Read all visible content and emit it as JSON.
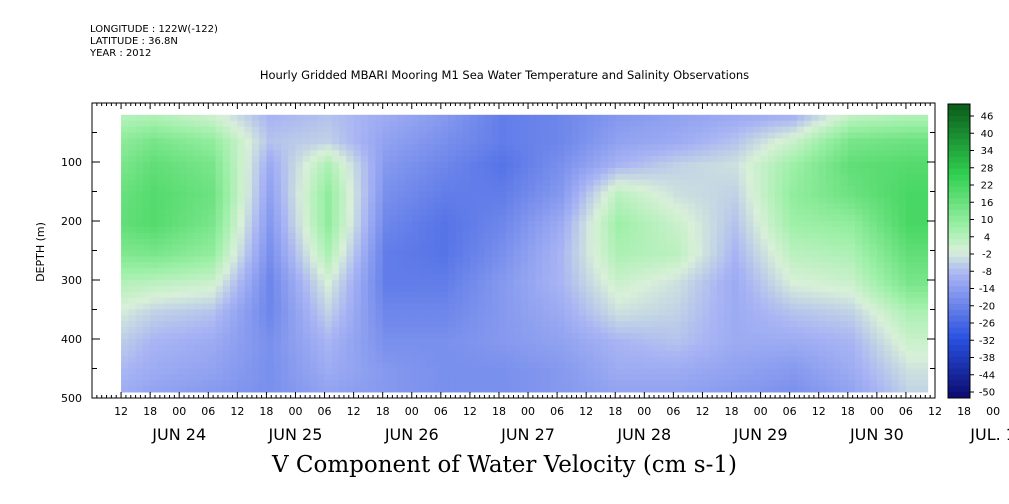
{
  "header": {
    "longitude": "LONGITUDE : 122W(-122)",
    "latitude": "LATITUDE : 36.8N",
    "year": "YEAR : 2012"
  },
  "title": "Hourly Gridded MBARI Mooring M1 Sea Water Temperature and Salinity Observations",
  "variable_title": "V Component of Water Velocity (cm s-1)",
  "colors": {
    "negative_strong": "#0a0a6e",
    "negative_mid": "#2850e0",
    "negative_weak": "#a8b4f4",
    "neutral": "#d8f0d8",
    "positive_weak": "#9ef0a8",
    "positive_mid": "#30d050",
    "positive_strong": "#0a5a1a"
  },
  "chart_data": {
    "type": "heatmap",
    "title": "Hourly Gridded MBARI Mooring M1 Sea Water Temperature and Salinity Observations",
    "xlabel": "",
    "ylabel": "DEPTH (m)",
    "ylim": [
      500,
      0
    ],
    "y_ticks": [
      100,
      200,
      300,
      400,
      500
    ],
    "x_range_hours": [
      0,
      174
    ],
    "x_hour_labels": [
      "12",
      "18",
      "00",
      "06",
      "12",
      "18",
      "00",
      "06",
      "12",
      "18",
      "00",
      "06",
      "12",
      "18",
      "00",
      "06",
      "12",
      "18",
      "00",
      "06",
      "12",
      "18",
      "00",
      "06",
      "12",
      "18",
      "00",
      "06",
      "12",
      "18",
      "00",
      "06"
    ],
    "x_day_labels": [
      "JUN 24",
      "JUN 25",
      "JUN 26",
      "JUN 27",
      "JUN 28",
      "JUN 29",
      "JUN 30",
      "JUL. 1"
    ],
    "colorbar_labels": [
      "46",
      "40",
      "34",
      "28",
      "22",
      "16",
      "10",
      "4",
      "-2",
      "-8",
      "-14",
      "-20",
      "-26",
      "-32",
      "-38",
      "-44",
      "-50"
    ],
    "colorbar_range": [
      -50,
      50
    ],
    "data_depth_range": [
      20,
      490
    ],
    "approx_values": {
      "depths_m": [
        20,
        60,
        100,
        150,
        200,
        250,
        300,
        350,
        400,
        450,
        490
      ],
      "time_hours": [
        0,
        12,
        24,
        36,
        48,
        60,
        72,
        84,
        96,
        108,
        120,
        132,
        144,
        156,
        168
      ],
      "v_cm_s": [
        [
          4,
          6,
          2,
          -8,
          -6,
          -10,
          -14,
          -20,
          -18,
          -14,
          -12,
          -10,
          -8,
          4,
          6
        ],
        [
          8,
          14,
          10,
          -6,
          -4,
          -12,
          -16,
          -20,
          -18,
          -12,
          -10,
          -6,
          2,
          14,
          16
        ],
        [
          10,
          18,
          14,
          -10,
          6,
          -14,
          -18,
          -22,
          -16,
          -8,
          -4,
          -2,
          8,
          18,
          20
        ],
        [
          14,
          20,
          16,
          -12,
          10,
          -16,
          -20,
          -20,
          -14,
          4,
          -2,
          -4,
          10,
          16,
          22
        ],
        [
          16,
          20,
          14,
          -14,
          10,
          -18,
          -22,
          -18,
          -10,
          8,
          2,
          -6,
          8,
          10,
          22
        ],
        [
          12,
          14,
          10,
          -16,
          6,
          -20,
          -22,
          -16,
          -8,
          6,
          4,
          -8,
          4,
          6,
          18
        ],
        [
          6,
          4,
          2,
          -18,
          0,
          -20,
          -20,
          -14,
          -8,
          2,
          -2,
          -10,
          0,
          2,
          14
        ],
        [
          2,
          -4,
          -6,
          -18,
          -4,
          -18,
          -18,
          -14,
          -10,
          -2,
          -4,
          -10,
          -6,
          -4,
          6
        ],
        [
          -2,
          -8,
          -10,
          -16,
          -8,
          -16,
          -16,
          -14,
          -12,
          -8,
          -6,
          -10,
          -10,
          -8,
          2
        ],
        [
          -6,
          -10,
          -12,
          -16,
          -10,
          -14,
          -16,
          -16,
          -14,
          -10,
          -10,
          -12,
          -14,
          -10,
          -2
        ],
        [
          -8,
          -12,
          -14,
          -16,
          -12,
          -14,
          -16,
          -16,
          -14,
          -12,
          -12,
          -14,
          -16,
          -12,
          -4
        ]
      ]
    },
    "grid": false,
    "legend": "colorbar-right"
  }
}
